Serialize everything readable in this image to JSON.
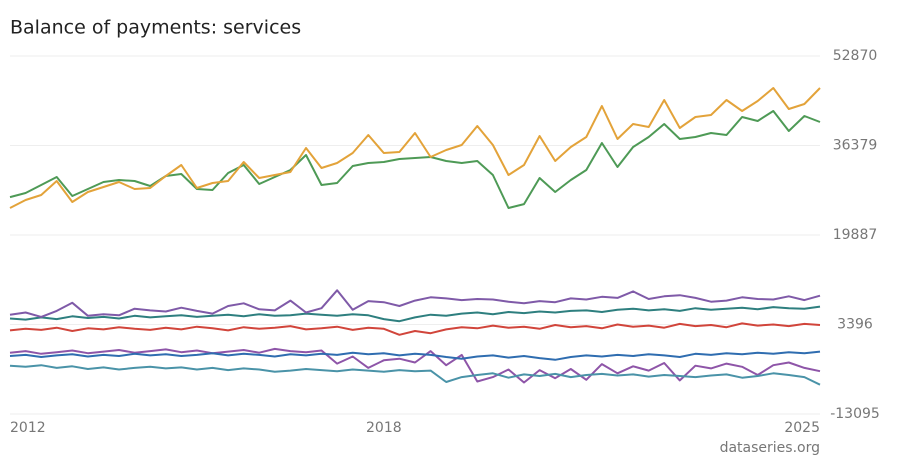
{
  "chart_data": {
    "type": "line",
    "title": "Balance of payments: services",
    "source": "dataseries.org",
    "x": [
      2012,
      2012.25,
      2012.5,
      2012.75,
      2013,
      2013.25,
      2013.5,
      2013.75,
      2014,
      2014.25,
      2014.5,
      2014.75,
      2015,
      2015.25,
      2015.5,
      2015.75,
      2016,
      2016.25,
      2016.5,
      2016.75,
      2017,
      2017.25,
      2017.5,
      2017.75,
      2018,
      2018.25,
      2018.5,
      2018.75,
      2019,
      2019.25,
      2019.5,
      2019.75,
      2020,
      2020.25,
      2020.5,
      2020.75,
      2021,
      2021.25,
      2021.5,
      2021.75,
      2022,
      2022.25,
      2022.5,
      2022.75,
      2023,
      2023.25,
      2023.5,
      2023.75,
      2024,
      2024.25,
      2024.5,
      2024.75,
      2025
    ],
    "xlim": [
      2012,
      2025
    ],
    "xticks": [
      2012,
      2018,
      2025
    ],
    "ylim": [
      -13095,
      52870
    ],
    "yticks": [
      -13095,
      3396,
      19887,
      36379,
      52870
    ],
    "grid": true,
    "series": [
      {
        "color": "#e3a33a",
        "values": [
          24860,
          26330,
          27250,
          29830,
          25960,
          27810,
          28730,
          29650,
          28360,
          28540,
          30750,
          32780,
          28540,
          29460,
          29830,
          33330,
          30390,
          30940,
          31490,
          35910,
          32230,
          33150,
          34990,
          38310,
          34990,
          35180,
          38680,
          34260,
          35550,
          36470,
          39970,
          36470,
          30940,
          32780,
          38130,
          33520,
          36100,
          37940,
          43660,
          37570,
          40340,
          39790,
          44760,
          39600,
          41630,
          42000,
          44760,
          42730,
          44580,
          46970,
          43100,
          44020,
          46970
        ]
      },
      {
        "color": "#4e9a56",
        "values": [
          26880,
          27620,
          29100,
          30570,
          27070,
          28360,
          29650,
          30020,
          29830,
          28910,
          30750,
          31120,
          28360,
          28170,
          31310,
          32780,
          29280,
          30570,
          31860,
          34620,
          29100,
          29460,
          32600,
          33150,
          33330,
          33890,
          34070,
          34260,
          33520,
          33150,
          33520,
          30940,
          24860,
          25590,
          30390,
          27810,
          30020,
          31860,
          36840,
          32410,
          36100,
          37940,
          40340,
          37570,
          37940,
          38680,
          38310,
          41630,
          40890,
          42730,
          39050,
          41810,
          40710
        ]
      },
      {
        "color": "#7f5aa8",
        "values": [
          5200,
          5600,
          4800,
          5900,
          7400,
          5000,
          5300,
          5100,
          6300,
          6000,
          5800,
          6500,
          5900,
          5400,
          6800,
          7300,
          6200,
          6000,
          7800,
          5600,
          6400,
          9700,
          6100,
          7700,
          7500,
          6800,
          7800,
          8400,
          8200,
          7900,
          8100,
          8000,
          7600,
          7300,
          7700,
          7500,
          8200,
          8000,
          8500,
          8300,
          9500,
          8100,
          8600,
          8800,
          8300,
          7600,
          7800,
          8400,
          8100,
          8000,
          8600,
          7900,
          8700
        ]
      },
      {
        "color": "#2e7f7f",
        "values": [
          4500,
          4300,
          4700,
          4400,
          4900,
          4600,
          4800,
          4500,
          5000,
          4700,
          4900,
          5100,
          4800,
          5000,
          5200,
          4900,
          5300,
          5000,
          5100,
          5400,
          5200,
          5000,
          5300,
          5100,
          4400,
          4000,
          4700,
          5200,
          5000,
          5400,
          5600,
          5300,
          5700,
          5500,
          5800,
          5600,
          5900,
          6000,
          5700,
          6100,
          6300,
          6000,
          6200,
          5900,
          6400,
          6100,
          6300,
          6500,
          6200,
          6600,
          6400,
          6300,
          6700
        ]
      },
      {
        "color": "#d1453b",
        "values": [
          2300,
          2600,
          2400,
          2800,
          2200,
          2700,
          2500,
          2900,
          2600,
          2400,
          2800,
          2500,
          3000,
          2700,
          2300,
          2900,
          2600,
          2800,
          3100,
          2500,
          2700,
          3000,
          2400,
          2800,
          2600,
          1500,
          2200,
          1800,
          2500,
          2900,
          2700,
          3200,
          2800,
          3000,
          2600,
          3300,
          2900,
          3100,
          2700,
          3400,
          3000,
          3200,
          2800,
          3500,
          3100,
          3300,
          2900,
          3600,
          3200,
          3400,
          3100,
          3500,
          3300
        ]
      },
      {
        "color": "#2f6db0",
        "values": [
          -2400,
          -2200,
          -2600,
          -2300,
          -2100,
          -2500,
          -2200,
          -2400,
          -2000,
          -2300,
          -2100,
          -2400,
          -2200,
          -1900,
          -2300,
          -2000,
          -2200,
          -2500,
          -2100,
          -2300,
          -2000,
          -2200,
          -1800,
          -2100,
          -1900,
          -2300,
          -2000,
          -2200,
          -2600,
          -2900,
          -2500,
          -2300,
          -2700,
          -2400,
          -2800,
          -3100,
          -2600,
          -2300,
          -2500,
          -2200,
          -2400,
          -2100,
          -2300,
          -2600,
          -2000,
          -2200,
          -1900,
          -2100,
          -1800,
          -2000,
          -1700,
          -1900,
          -1600
        ]
      },
      {
        "color": "#4a93a8",
        "values": [
          -4200,
          -4400,
          -4100,
          -4600,
          -4300,
          -4800,
          -4500,
          -4900,
          -4600,
          -4400,
          -4700,
          -4500,
          -4900,
          -4600,
          -5000,
          -4700,
          -4900,
          -5300,
          -5100,
          -4800,
          -5000,
          -5200,
          -4900,
          -5100,
          -5300,
          -5000,
          -5200,
          -5100,
          -7200,
          -6300,
          -5900,
          -5600,
          -6400,
          -5800,
          -6100,
          -5700,
          -6300,
          -5900,
          -5700,
          -6000,
          -5800,
          -6200,
          -5900,
          -6100,
          -6300,
          -6000,
          -5800,
          -6400,
          -6100,
          -5600,
          -5900,
          -6300,
          -7700
        ]
      },
      {
        "color": "#8e55a8",
        "values": [
          -1800,
          -1500,
          -2000,
          -1700,
          -1400,
          -1900,
          -1600,
          -1300,
          -1800,
          -1500,
          -1200,
          -1700,
          -1400,
          -1900,
          -1600,
          -1300,
          -1800,
          -1100,
          -1500,
          -1700,
          -1400,
          -3800,
          -2500,
          -4600,
          -3200,
          -2900,
          -3600,
          -1500,
          -4100,
          -2200,
          -7100,
          -6300,
          -4900,
          -7300,
          -5000,
          -6500,
          -4800,
          -6800,
          -3900,
          -5600,
          -4300,
          -5100,
          -3700,
          -6900,
          -4200,
          -4700,
          -3800,
          -4400,
          -5900,
          -4100,
          -3600,
          -4600,
          -5200
        ]
      }
    ]
  }
}
